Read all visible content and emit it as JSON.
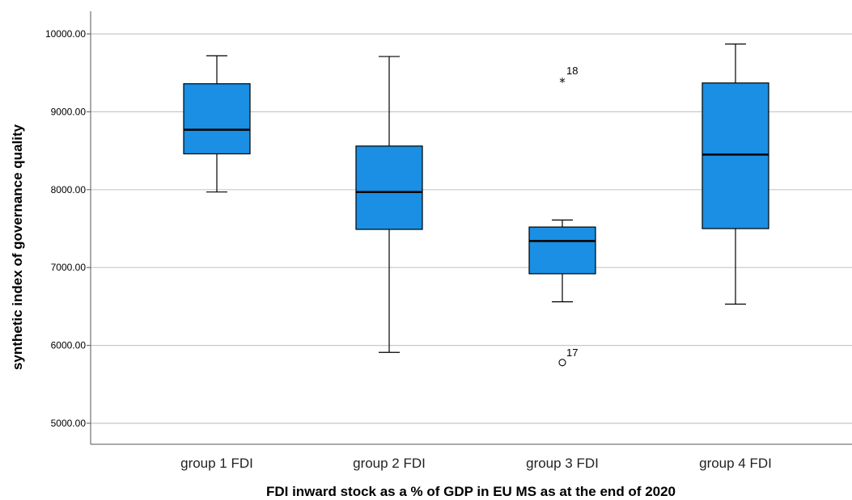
{
  "chart_data": {
    "type": "boxplot",
    "xlabel": "FDI inward stock as a % of GDP in EU MS as at the end of 2020",
    "ylabel": "synthetic index of governance quality",
    "ylim": [
      4800,
      10300
    ],
    "yticks": [
      5000,
      6000,
      7000,
      8000,
      9000,
      10000
    ],
    "ytick_labels": [
      "5000.00",
      "6000.00",
      "7000.00",
      "8000.00",
      "9000.00",
      "10000.00"
    ],
    "grid": "horizontal",
    "categories": [
      "group 1 FDI",
      "group 2 FDI",
      "group 3 FDI",
      "group 4 FDI"
    ],
    "boxes": [
      {
        "category": "group 1 FDI",
        "whisker_low": 7970,
        "q1": 8460,
        "median": 8770,
        "q3": 9360,
        "whisker_high": 9720,
        "outliers": []
      },
      {
        "category": "group 2 FDI",
        "whisker_low": 5910,
        "q1": 7490,
        "median": 7970,
        "q3": 8560,
        "whisker_high": 9710,
        "outliers": []
      },
      {
        "category": "group 3 FDI",
        "whisker_low": 6560,
        "q1": 6920,
        "median": 7340,
        "q3": 7520,
        "whisker_high": 7610,
        "outliers": [
          {
            "value": 9400,
            "label": "18",
            "marker": "star"
          },
          {
            "value": 5780,
            "label": "17",
            "marker": "circle"
          }
        ]
      },
      {
        "category": "group 4 FDI",
        "whisker_low": 6530,
        "q1": 7500,
        "median": 8450,
        "q3": 9370,
        "whisker_high": 9870,
        "outliers": []
      }
    ],
    "box_color": "#1a8fe3"
  }
}
